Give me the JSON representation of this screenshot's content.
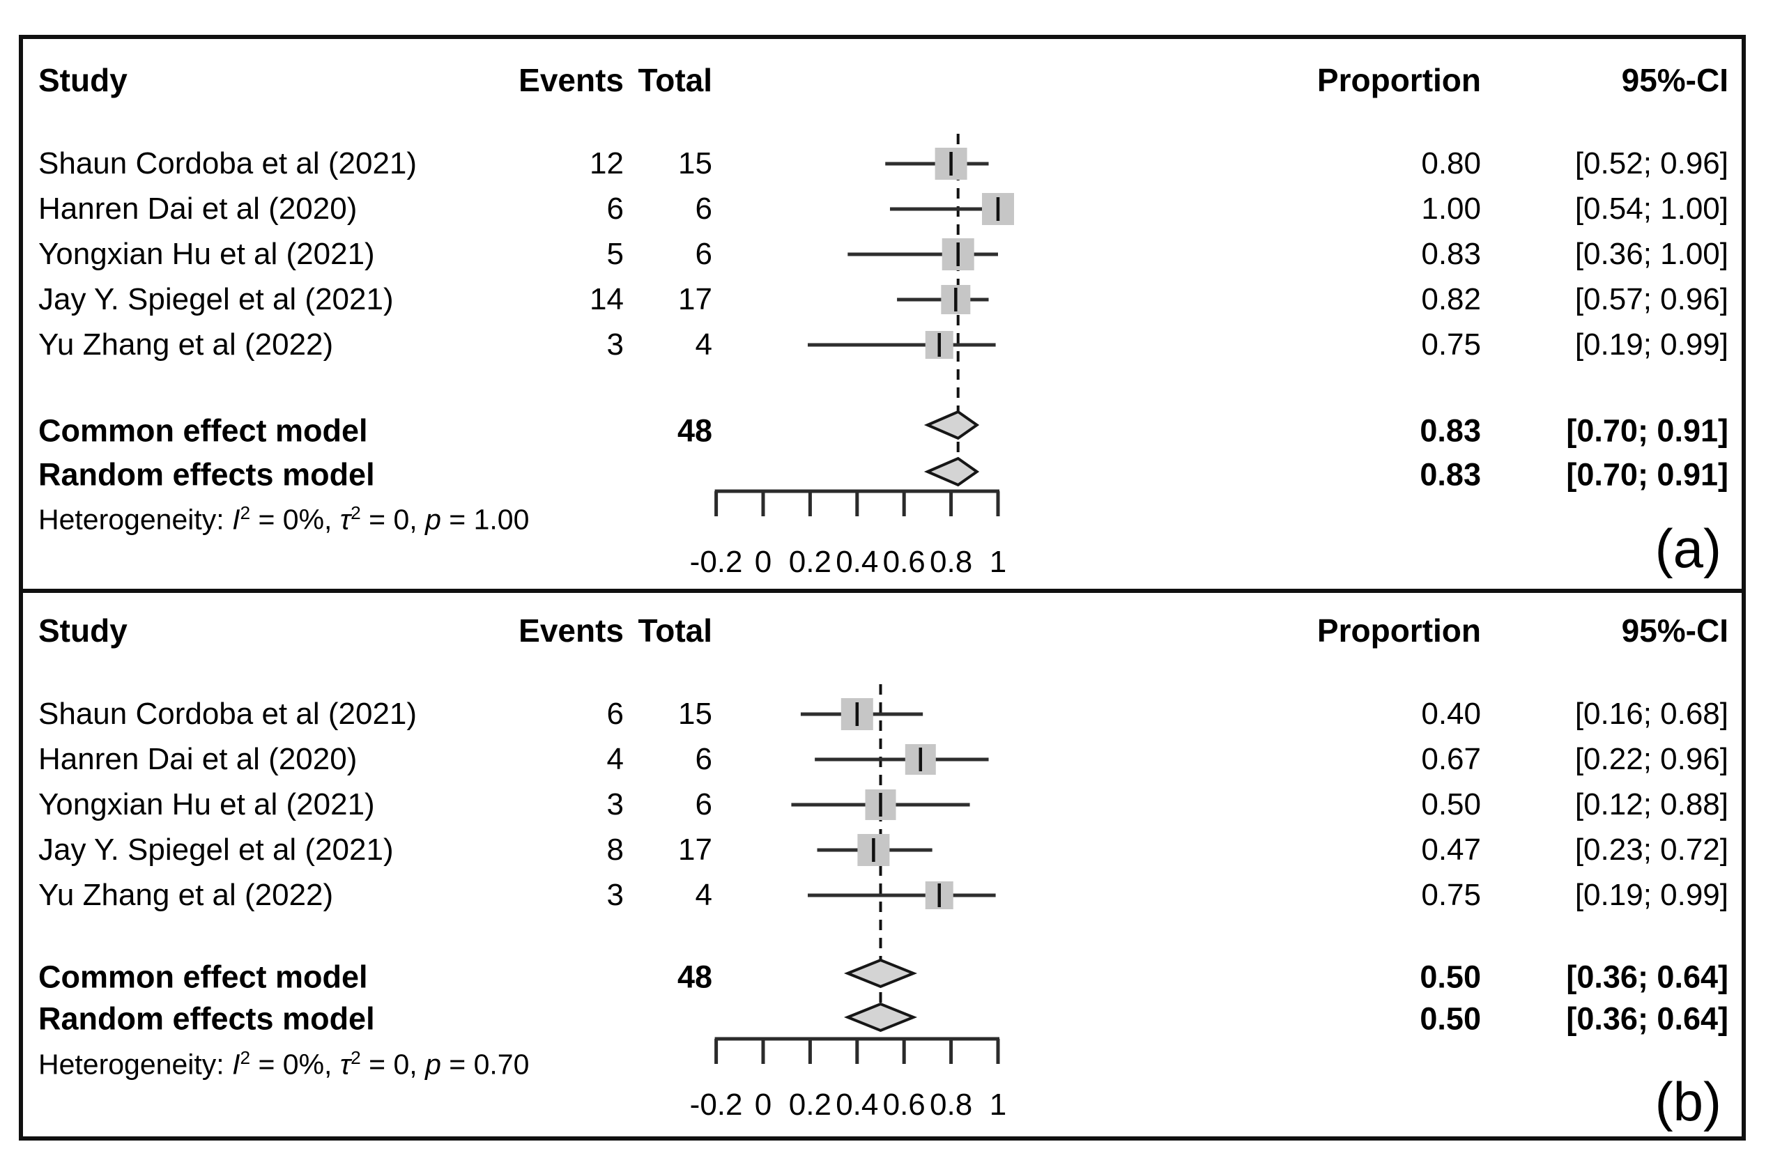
{
  "chart_data": [
    {
      "type": "forest",
      "panel_label": "(a)",
      "columns": {
        "study": "Study",
        "events": "Events",
        "total": "Total",
        "proportion": "Proportion",
        "ci": "95%-CI"
      },
      "studies": [
        {
          "name": "Shaun Cordoba et al (2021)",
          "events": "12",
          "total": "15",
          "proportion_text": "0.80",
          "ci_text": "[0.52; 0.96]",
          "proportion": 0.8,
          "lo": 0.52,
          "hi": 0.96
        },
        {
          "name": "Hanren Dai et al (2020)",
          "events": "6",
          "total": "6",
          "proportion_text": "1.00",
          "ci_text": "[0.54; 1.00]",
          "proportion": 1.0,
          "lo": 0.54,
          "hi": 1.0
        },
        {
          "name": "Yongxian Hu et al (2021)",
          "events": "5",
          "total": "6",
          "proportion_text": "0.83",
          "ci_text": "[0.36; 1.00]",
          "proportion": 0.83,
          "lo": 0.36,
          "hi": 1.0
        },
        {
          "name": "Jay Y. Spiegel et al (2021)",
          "events": "14",
          "total": "17",
          "proportion_text": "0.82",
          "ci_text": "[0.57; 0.96]",
          "proportion": 0.82,
          "lo": 0.57,
          "hi": 0.96
        },
        {
          "name": "Yu Zhang et al (2022)",
          "events": "3",
          "total": "4",
          "proportion_text": "0.75",
          "ci_text": "[0.19; 0.99]",
          "proportion": 0.75,
          "lo": 0.19,
          "hi": 0.99
        }
      ],
      "common_effect": {
        "label": "Common effect model",
        "total": "48",
        "proportion_text": "0.83",
        "ci_text": "[0.70; 0.91]",
        "proportion": 0.83,
        "lo": 0.7,
        "hi": 0.91
      },
      "random_effects": {
        "label": "Random effects model",
        "proportion_text": "0.83",
        "ci_text": "[0.70; 0.91]",
        "proportion": 0.83,
        "lo": 0.7,
        "hi": 0.91
      },
      "heterogeneity": {
        "prefix": "Heterogeneity: ",
        "i_label": "I",
        "i_sup": "2",
        "i_rest": " = 0%, ",
        "tau_label": "τ",
        "tau_sup": "2",
        "tau_rest": " = 0, ",
        "p_label": "p",
        "p_rest": " = 1.00"
      },
      "axis": {
        "tick_labels": [
          "-0.2",
          "0",
          "0.2",
          "0.4",
          "0.6",
          "0.8",
          "1"
        ],
        "tick_values": [
          -0.2,
          0,
          0.2,
          0.4,
          0.6,
          0.8,
          1
        ],
        "range": [
          -0.2,
          1
        ]
      },
      "dashed_line_at": 0.83,
      "marker_sizes": [
        46,
        46,
        46,
        42,
        40
      ],
      "colors": {
        "square": "#c6c6c6",
        "diamond_fill": "#d4d4d4",
        "line": "#2e2e2e",
        "axis": "#2b2b2b",
        "text": "#000000"
      }
    },
    {
      "type": "forest",
      "panel_label": "(b)",
      "columns": {
        "study": "Study",
        "events": "Events",
        "total": "Total",
        "proportion": "Proportion",
        "ci": "95%-CI"
      },
      "studies": [
        {
          "name": "Shaun Cordoba et al (2021)",
          "events": "6",
          "total": "15",
          "proportion_text": "0.40",
          "ci_text": "[0.16; 0.68]",
          "proportion": 0.4,
          "lo": 0.16,
          "hi": 0.68
        },
        {
          "name": "Hanren Dai et al (2020)",
          "events": "4",
          "total": "6",
          "proportion_text": "0.67",
          "ci_text": "[0.22; 0.96]",
          "proportion": 0.67,
          "lo": 0.22,
          "hi": 0.96
        },
        {
          "name": "Yongxian Hu et al (2021)",
          "events": "3",
          "total": "6",
          "proportion_text": "0.50",
          "ci_text": "[0.12; 0.88]",
          "proportion": 0.5,
          "lo": 0.12,
          "hi": 0.88
        },
        {
          "name": "Jay Y. Spiegel et al (2021)",
          "events": "8",
          "total": "17",
          "proportion_text": "0.47",
          "ci_text": "[0.23; 0.72]",
          "proportion": 0.47,
          "lo": 0.23,
          "hi": 0.72
        },
        {
          "name": "Yu Zhang et al (2022)",
          "events": "3",
          "total": "4",
          "proportion_text": "0.75",
          "ci_text": "[0.19; 0.99]",
          "proportion": 0.75,
          "lo": 0.19,
          "hi": 0.99
        }
      ],
      "common_effect": {
        "label": "Common effect model",
        "total": "48",
        "proportion_text": "0.50",
        "ci_text": "[0.36; 0.64]",
        "proportion": 0.5,
        "lo": 0.36,
        "hi": 0.64
      },
      "random_effects": {
        "label": "Random effects model",
        "proportion_text": "0.50",
        "ci_text": "[0.36; 0.64]",
        "proportion": 0.5,
        "lo": 0.36,
        "hi": 0.64
      },
      "heterogeneity": {
        "prefix": "Heterogeneity: ",
        "i_label": "I",
        "i_sup": "2",
        "i_rest": " = 0%, ",
        "tau_label": "τ",
        "tau_sup": "2",
        "tau_rest": " = 0, ",
        "p_label": "p",
        "p_rest": " = 0.70"
      },
      "axis": {
        "tick_labels": [
          "-0.2",
          "0",
          "0.2",
          "0.4",
          "0.6",
          "0.8",
          "1"
        ],
        "tick_values": [
          -0.2,
          0,
          0.2,
          0.4,
          0.6,
          0.8,
          1
        ],
        "range": [
          -0.2,
          1
        ]
      },
      "dashed_line_at": 0.5,
      "marker_sizes": [
        46,
        44,
        44,
        46,
        40
      ],
      "colors": {
        "square": "#c6c6c6",
        "diamond_fill": "#d4d4d4",
        "line": "#2e2e2e",
        "axis": "#2b2b2b",
        "text": "#000000"
      }
    }
  ]
}
